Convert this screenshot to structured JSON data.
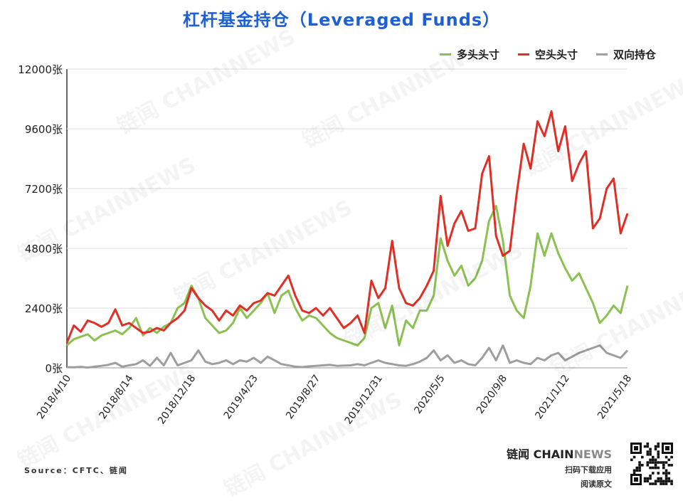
{
  "title": "杠杆基金持仓（Leveraged Funds）",
  "source": "Source：CFTC、链闻",
  "brand": {
    "name_dark": "链闻 CHAIN",
    "name_light": "NEWS",
    "line1": "扫码下载应用",
    "line2": "阅读原文"
  },
  "watermark": "链闻 CHAINNEWS",
  "colors": {
    "long": "#8cc152",
    "short": "#e02f26",
    "spread": "#9e9e9e",
    "title": "#1f5fd6"
  },
  "chart_data": {
    "type": "line",
    "title": "杠杆基金持仓（Leveraged Funds）",
    "ylim": [
      0,
      12000
    ],
    "y_ticks": [
      0,
      2400,
      4800,
      7200,
      9600,
      12000
    ],
    "y_tick_labels": [
      "0张",
      "2400张",
      "4800张",
      "7200张",
      "9600张",
      "12000张"
    ],
    "x_tick_labels": [
      "2018/4/10",
      "2018/8/14",
      "2018/12/18",
      "2019/4/23",
      "2019/8/27",
      "2019/12/31",
      "2020/5/5",
      "2020/9/8",
      "2021/1/12",
      "2021/5/18"
    ],
    "x_range": [
      0,
      162
    ],
    "x_tick_positions": [
      0,
      18,
      36,
      54,
      72,
      90,
      108,
      126,
      144,
      162
    ],
    "legend_position": "top-right",
    "grid": true,
    "series": [
      {
        "name": "多头头寸",
        "x": [
          0,
          2,
          4,
          6,
          8,
          10,
          12,
          14,
          16,
          18,
          20,
          22,
          24,
          26,
          28,
          30,
          32,
          34,
          36,
          38,
          40,
          42,
          44,
          46,
          48,
          50,
          52,
          54,
          56,
          58,
          60,
          62,
          64,
          66,
          68,
          70,
          72,
          74,
          76,
          78,
          80,
          82,
          84,
          86,
          88,
          90,
          92,
          94,
          96,
          98,
          100,
          102,
          104,
          106,
          108,
          110,
          112,
          114,
          116,
          118,
          120,
          122,
          124,
          126,
          128,
          130,
          132,
          134,
          136,
          138,
          140,
          142,
          144,
          146,
          148,
          150,
          152,
          154,
          156,
          158,
          160,
          162
        ],
        "values": [
          900,
          1150,
          1250,
          1350,
          1100,
          1300,
          1400,
          1500,
          1350,
          1600,
          2000,
          1300,
          1600,
          1400,
          1650,
          1800,
          2400,
          2600,
          3300,
          2800,
          2000,
          1700,
          1400,
          1500,
          1800,
          2400,
          2000,
          2300,
          2600,
          3000,
          2200,
          2900,
          3100,
          2400,
          1900,
          2100,
          2000,
          1700,
          1400,
          1200,
          1100,
          1000,
          900,
          1200,
          2400,
          2600,
          1600,
          2500,
          900,
          1900,
          1600,
          2300,
          2300,
          2900,
          5200,
          4300,
          3700,
          4100,
          3300,
          3600,
          4300,
          5900,
          6500,
          5100,
          2900,
          2300,
          2000,
          3300,
          5400,
          4500,
          5400,
          4600,
          4000,
          3500,
          3800,
          3200,
          2600,
          1800,
          2100,
          2500,
          2200,
          3300
        ]
      },
      {
        "name": "空头头寸",
        "x": [
          0,
          2,
          4,
          6,
          8,
          10,
          12,
          14,
          16,
          18,
          20,
          22,
          24,
          26,
          28,
          30,
          32,
          34,
          36,
          38,
          40,
          42,
          44,
          46,
          48,
          50,
          52,
          54,
          56,
          58,
          60,
          62,
          64,
          66,
          68,
          70,
          72,
          74,
          76,
          78,
          80,
          82,
          84,
          86,
          88,
          90,
          92,
          94,
          96,
          98,
          100,
          102,
          104,
          106,
          108,
          110,
          112,
          114,
          116,
          118,
          120,
          122,
          124,
          126,
          128,
          130,
          132,
          134,
          136,
          138,
          140,
          142,
          144,
          146,
          148,
          150,
          152,
          154,
          156,
          158,
          160,
          162
        ],
        "values": [
          1000,
          1700,
          1450,
          1900,
          1800,
          1650,
          1800,
          2350,
          1700,
          1800,
          1600,
          1400,
          1450,
          1600,
          1500,
          1800,
          2000,
          2300,
          3200,
          2800,
          2500,
          2300,
          1900,
          2300,
          2100,
          2500,
          2300,
          2600,
          2700,
          3000,
          2900,
          3300,
          3700,
          2900,
          2300,
          2200,
          2400,
          2100,
          2400,
          2000,
          1600,
          1800,
          2100,
          1400,
          3500,
          2800,
          3200,
          5100,
          3200,
          2600,
          2500,
          2800,
          3300,
          3900,
          6900,
          4900,
          5800,
          6300,
          5500,
          5600,
          7800,
          8500,
          5300,
          4500,
          4700,
          7000,
          9000,
          8000,
          9900,
          9300,
          10300,
          8700,
          9700,
          7500,
          8200,
          8700,
          5600,
          6000,
          7200,
          7600,
          5400,
          6200
        ]
      },
      {
        "name": "双向持仓",
        "x": [
          0,
          2,
          4,
          6,
          8,
          10,
          12,
          14,
          16,
          18,
          20,
          22,
          24,
          26,
          28,
          30,
          32,
          34,
          36,
          38,
          40,
          42,
          44,
          46,
          48,
          50,
          52,
          54,
          56,
          58,
          60,
          62,
          64,
          66,
          68,
          70,
          72,
          74,
          76,
          78,
          80,
          82,
          84,
          86,
          88,
          90,
          92,
          94,
          96,
          98,
          100,
          102,
          104,
          106,
          108,
          110,
          112,
          114,
          116,
          118,
          120,
          122,
          124,
          126,
          128,
          130,
          132,
          134,
          136,
          138,
          140,
          142,
          144,
          146,
          148,
          150,
          152,
          154,
          156,
          158,
          160,
          162
        ],
        "values": [
          30,
          20,
          40,
          10,
          50,
          80,
          120,
          200,
          50,
          100,
          150,
          300,
          80,
          400,
          100,
          600,
          100,
          200,
          300,
          700,
          250,
          150,
          200,
          300,
          150,
          300,
          250,
          400,
          200,
          450,
          300,
          150,
          100,
          50,
          30,
          60,
          80,
          100,
          120,
          80,
          90,
          100,
          150,
          100,
          200,
          300,
          200,
          150,
          100,
          80,
          150,
          250,
          400,
          700,
          300,
          500,
          200,
          300,
          150,
          100,
          400,
          800,
          300,
          900,
          200,
          300,
          200,
          150,
          400,
          300,
          500,
          600,
          300,
          450,
          600,
          700,
          800,
          900,
          600,
          500,
          400,
          700
        ]
      }
    ]
  }
}
